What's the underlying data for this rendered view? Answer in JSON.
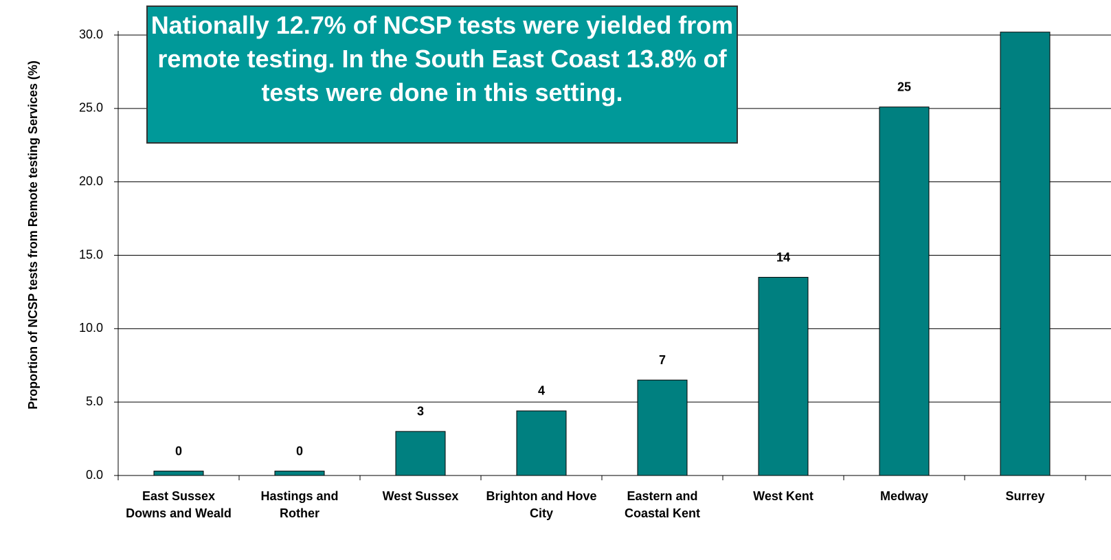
{
  "chart_data": {
    "type": "bar",
    "annotation": "Nationally  12.7% of NCSP tests were yielded from remote testing. In the South East Coast 13.8% of tests were done in this setting.",
    "y_label": "Proportion of NCSP tests from Remote testing Services (%)",
    "categories": [
      "East Sussex Downs and Weald",
      "Hastings and Rother",
      "West Sussex",
      "Brighton and Hove City",
      "Eastern and Coastal Kent",
      "West Kent",
      "Medway",
      "Surrey"
    ],
    "values": [
      0.3,
      0.3,
      3.0,
      4.4,
      6.5,
      13.5,
      25.1,
      30.2
    ],
    "value_labels": [
      "0",
      "0",
      "3",
      "4",
      "7",
      "14",
      "25",
      null
    ],
    "color": "#008080",
    "ylim": [
      0,
      30
    ],
    "yticks": [
      {
        "value": 0,
        "label": "0.0"
      },
      {
        "value": 5,
        "label": "5.0"
      },
      {
        "value": 10,
        "label": "10.0"
      },
      {
        "value": 15,
        "label": "15.0"
      },
      {
        "value": 20,
        "label": "20.0"
      },
      {
        "value": 25,
        "label": "25.0"
      },
      {
        "value": 30,
        "label": "30.0"
      }
    ],
    "grid": true
  }
}
